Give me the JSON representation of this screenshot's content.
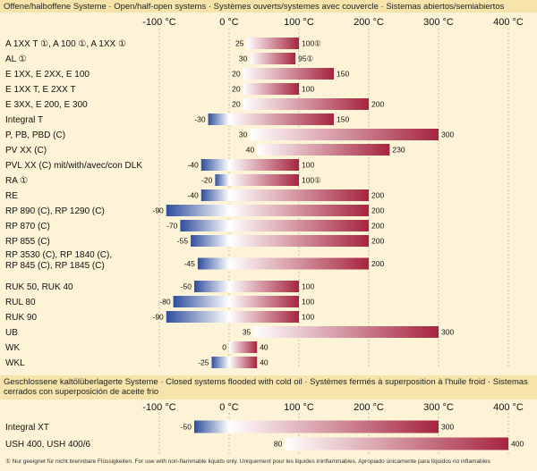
{
  "colors": {
    "background": "#fdf3d6",
    "header_band": "#f7e4ab",
    "cold": "#2f4e9e",
    "hot": "#a6243f",
    "neutral": "#ffffff",
    "grid": "#bbbbbb"
  },
  "footnote": "Nur geeignet für nicht brennbare Flüssigkeiten. For use with non-flammable liquids only. Uniquement pour les liquides ininflammables. Apropiado únicamente para líquidos no inflamables",
  "chart_data": [
    {
      "type": "bar",
      "title": "Offene/halboffene Systeme · Open/half-open systems · Systèmes ouverts/systemes avec couvercle · Sistemas abiertos/semiabiertos",
      "xlim": [
        -100,
        400
      ],
      "x_ticks": [
        "-100 °C",
        "0 °C",
        "100 °C",
        "200 °C",
        "300 °C",
        "400 °C"
      ],
      "grid": true,
      "series": [
        {
          "label": "A 1XX T ①, A 100 ①, A 1XX ①",
          "min": 25,
          "max": 100,
          "min_label": "25",
          "max_label": "100①"
        },
        {
          "label": "AL ①",
          "min": 30,
          "max": 95,
          "min_label": "30",
          "max_label": "95①"
        },
        {
          "label": "E 1XX, E 2XX, E 100",
          "min": 20,
          "max": 150,
          "min_label": "20",
          "max_label": "150"
        },
        {
          "label": "E 1XX T, E 2XX T",
          "min": 20,
          "max": 100,
          "min_label": "20",
          "max_label": "100"
        },
        {
          "label": "E 3XX, E 200, E 300",
          "min": 20,
          "max": 200,
          "min_label": "20",
          "max_label": "200"
        },
        {
          "label": "Integral T",
          "min": -30,
          "max": 150,
          "min_label": "-30",
          "max_label": "150"
        },
        {
          "label": "P, PB, PBD (C)",
          "min": 30,
          "max": 300,
          "min_label": "30",
          "max_label": "300"
        },
        {
          "label": "PV XX (C)",
          "min": 40,
          "max": 230,
          "min_label": "40",
          "max_label": "230"
        },
        {
          "label": "PVL XX (C) mit/with/avec/con DLK",
          "min": -40,
          "max": 100,
          "min_label": "-40",
          "max_label": "100"
        },
        {
          "label": "RA ①",
          "min": -20,
          "max": 100,
          "min_label": "-20",
          "max_label": "100①"
        },
        {
          "label": "RE",
          "min": -40,
          "max": 200,
          "min_label": "-40",
          "max_label": "200"
        },
        {
          "label": "RP 890 (C), RP 1290 (C)",
          "min": -90,
          "max": 200,
          "min_label": "-90",
          "max_label": "200"
        },
        {
          "label": "RP 870 (C)",
          "min": -70,
          "max": 200,
          "min_label": "-70",
          "max_label": "200"
        },
        {
          "label": "RP 855 (C)",
          "min": -55,
          "max": 200,
          "min_label": "-55",
          "max_label": "200"
        },
        {
          "label": "RP 3530 (C), RP 1840 (C),",
          "label2": "RP 845 (C), RP 1845 (C)",
          "min": -45,
          "max": 200,
          "min_label": "-45",
          "max_label": "200"
        },
        {
          "label": "RUK 50, RUK 40",
          "min": -50,
          "max": 100,
          "min_label": "-50",
          "max_label": "100"
        },
        {
          "label": "RUL 80",
          "min": -80,
          "max": 100,
          "min_label": "-80",
          "max_label": "100"
        },
        {
          "label": "RUK 90",
          "min": -90,
          "max": 100,
          "min_label": "-90",
          "max_label": "100"
        },
        {
          "label": "UB",
          "min": 35,
          "max": 300,
          "min_label": "35",
          "max_label": "300"
        },
        {
          "label": "WK",
          "min": 0,
          "max": 40,
          "min_label": "0",
          "max_label": "40"
        },
        {
          "label": "WKL",
          "min": -25,
          "max": 40,
          "min_label": "-25",
          "max_label": "40"
        }
      ]
    },
    {
      "type": "bar",
      "title": "Geschlossene kaltölüberlagerte Systeme · Closed systems flooded with cold oil · Systèmes fermés à superposition à l'huile froid · Sistemas cerrados con superposición de aceite frio",
      "xlim": [
        -100,
        400
      ],
      "x_ticks": [
        "-100 °C",
        "0 °C",
        "100 °C",
        "200 °C",
        "300 °C",
        "400 °C"
      ],
      "grid": true,
      "series": [
        {
          "label": "Integral XT",
          "min": -50,
          "max": 300,
          "min_label": "-50",
          "max_label": "300"
        },
        {
          "label": "USH 400, USH 400/6",
          "min": 80,
          "max": 400,
          "min_label": "80",
          "max_label": "400"
        }
      ]
    }
  ]
}
